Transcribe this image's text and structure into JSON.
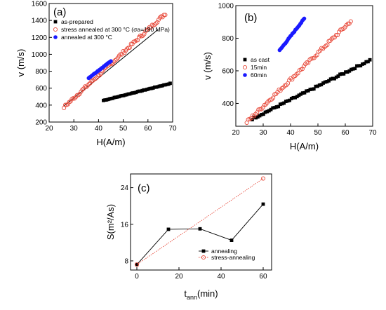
{
  "chart_data": [
    {
      "type": "scatter",
      "panel_label": "(a)",
      "xlabel": "H(A/m)",
      "ylabel": "v (m/s)",
      "xlim": [
        20,
        70
      ],
      "ylim": [
        200,
        1600
      ],
      "xticks": [
        20,
        30,
        40,
        50,
        60,
        70
      ],
      "yticks": [
        200,
        400,
        600,
        800,
        1000,
        1200,
        1400,
        1600
      ],
      "legend_position": "top-left",
      "series": [
        {
          "name": "as-prepared",
          "marker": "square-filled",
          "color": "#000000",
          "x_range": [
            42,
            69
          ],
          "y_range": [
            455,
            655
          ],
          "count": 44
        },
        {
          "name": "stress annealed at 300 °C (σa=190 MPa)",
          "marker": "circle-open",
          "color": "#e84c3d",
          "x_range": [
            26,
            67
          ],
          "y_range": [
            375,
            1480
          ],
          "count": 78
        },
        {
          "name": "annealed at 300 °C",
          "marker": "circle-filled",
          "color": "#1a1aff",
          "x_range": [
            36,
            45
          ],
          "y_range": [
            720,
            920
          ],
          "count": 26
        }
      ],
      "fit_line": {
        "color": "#000000",
        "x": [
          26,
          64
        ],
        "y": [
          390,
          1290
        ]
      }
    },
    {
      "type": "scatter",
      "panel_label": "(b)",
      "xlabel": "H(A/m)",
      "ylabel": "v (m/s)",
      "xlim": [
        20,
        70
      ],
      "ylim": [
        260,
        1000
      ],
      "xticks": [
        20,
        30,
        40,
        50,
        60,
        70
      ],
      "yticks": [
        400,
        600,
        800,
        1000
      ],
      "legend_position": "middle-left",
      "series": [
        {
          "name": "as cast",
          "marker": "square-filled",
          "color": "#000000",
          "x_range": [
            26,
            69
          ],
          "y_range": [
            305,
            665
          ],
          "count": 64
        },
        {
          "name": "15min",
          "marker": "circle-open",
          "color": "#e84c3d",
          "x_range": [
            24,
            62
          ],
          "y_range": [
            285,
            905
          ],
          "count": 72
        },
        {
          "name": "60min",
          "marker": "circle-filled",
          "color": "#1a1aff",
          "x_range": [
            36,
            45
          ],
          "y_range": [
            725,
            920
          ],
          "count": 26
        }
      ]
    },
    {
      "type": "line",
      "panel_label": "(c)",
      "xlabel": "t",
      "xlabel_sub": "ann",
      "xlabel_suffix": "(min)",
      "ylabel": "S(m²/As)",
      "xlim": [
        -3,
        64
      ],
      "ylim": [
        6,
        27
      ],
      "xticks": [
        0,
        20,
        40,
        60
      ],
      "yticks": [
        8,
        16,
        24
      ],
      "legend_position": "bottom-right",
      "series": [
        {
          "name": "annealing",
          "marker": "square-filled",
          "color": "#000000",
          "x": [
            0,
            15,
            30,
            45,
            60
          ],
          "y": [
            7.2,
            14.9,
            15.0,
            12.5,
            20.4
          ]
        },
        {
          "name": "stress-annealing",
          "marker": "circle-open",
          "color": "#e84c3d",
          "dotted": true,
          "x": [
            0,
            60
          ],
          "y": [
            7.2,
            26.0
          ]
        }
      ]
    }
  ]
}
